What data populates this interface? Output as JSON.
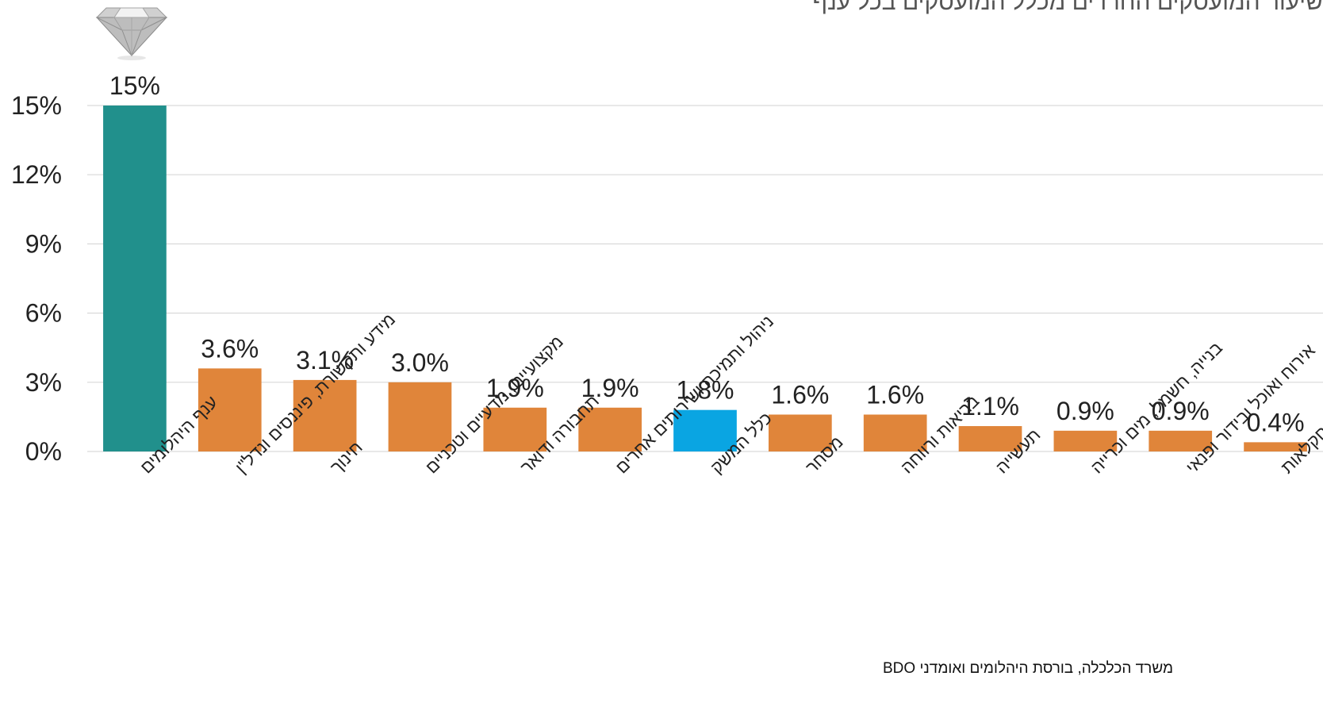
{
  "title": "שיעור המועסקים החרדים מכלל המועסקים בכל ענף",
  "source": "משרד הכלכלה, בורסת היהלומים ואומדני BDO",
  "colors": {
    "highlight": "#21908C",
    "default": "#E0853A",
    "economy": "#0AA5E2",
    "grid": "#D9D9D9"
  },
  "icon": "diamond-icon",
  "chart_data": {
    "type": "bar",
    "ylim": [
      0,
      15
    ],
    "yticks": [
      "0%",
      "3%",
      "6%",
      "9%",
      "12%",
      "15%"
    ],
    "grid": true,
    "categories": [
      "ענף היהלומים",
      "מידע ותקשורת, פיננסים ונדל\"ן",
      "חינוך",
      "מקצועיים, מדעיים וטכניים",
      "תחבורה ודואר",
      "ניהול ותמיכה ושירותים אחרים",
      "כלל המשק",
      "מסחר",
      "בריאות ורווחה",
      "תעשייה",
      "בנייה, חשמל, מים וכרייה",
      "אירוח ואוכל ובידור ופנאי",
      "חקלאות"
    ],
    "values": [
      15,
      3.6,
      3.1,
      3.0,
      1.9,
      1.9,
      1.8,
      1.6,
      1.6,
      1.1,
      0.9,
      0.9,
      0.4
    ],
    "labels": [
      "15%",
      "3.6%",
      "3.1%",
      "3.0%",
      "1.9%",
      "1.9%",
      "1.8%",
      "1.6%",
      "1.6%",
      "1.1%",
      "0.9%",
      "0.9%",
      "0.4%"
    ],
    "bar_colors": [
      "highlight",
      "default",
      "default",
      "default",
      "default",
      "default",
      "economy",
      "default",
      "default",
      "default",
      "default",
      "default",
      "default"
    ]
  }
}
